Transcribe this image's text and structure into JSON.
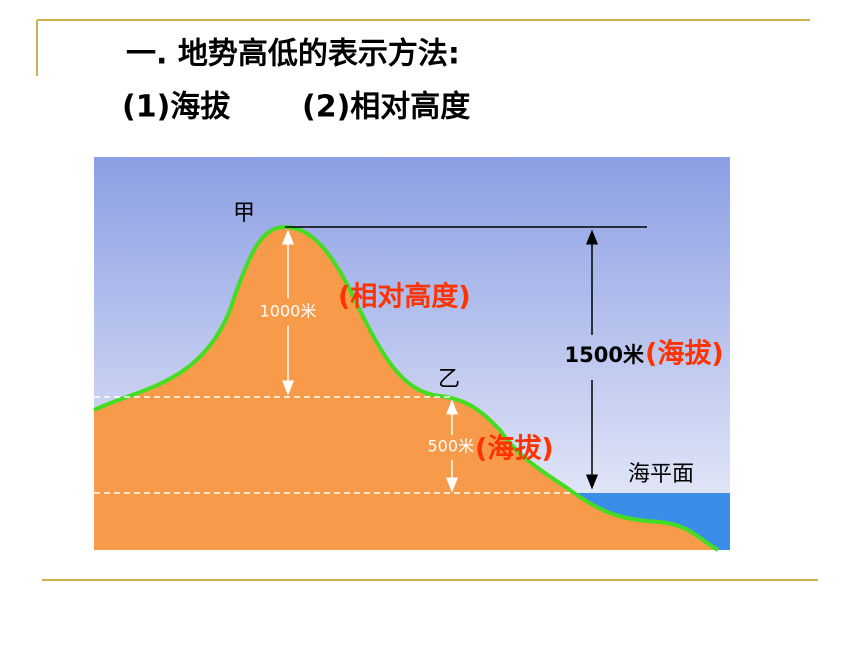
{
  "header": {
    "title": "一. 地势高低的表示方法:",
    "items": [
      "(1)海拔",
      "(2)相对高度"
    ]
  },
  "diagram": {
    "peak_label": "甲",
    "mid_label": "乙",
    "relative_height_value": "1000米",
    "relative_height_note": "(相对高度)",
    "peak_altitude_value": "1500米",
    "peak_altitude_note": "(海拔)",
    "mid_altitude_value": "500米",
    "mid_altitude_note": "(海拔)",
    "sea_level": "海平面"
  }
}
